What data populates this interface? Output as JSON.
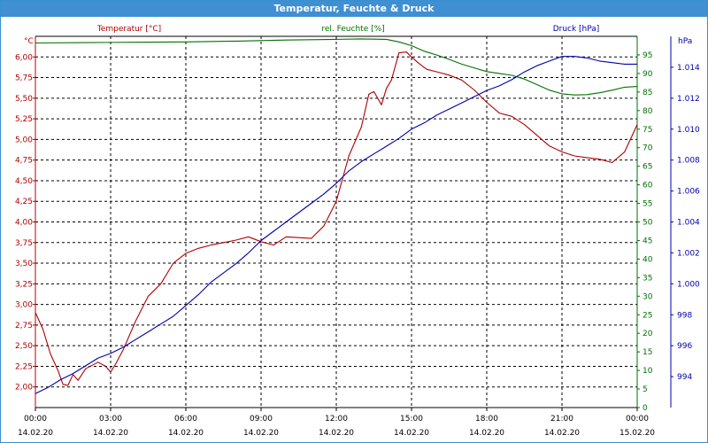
{
  "window": {
    "title": "Temperatur, Feuchte & Druck"
  },
  "colors": {
    "temperature": "#b00000",
    "humidity": "#007000",
    "pressure": "#0000b0",
    "grid": "#000000"
  },
  "chart_data": {
    "type": "line",
    "title": "Temperatur, Feuchte & Druck",
    "grid": true,
    "x_ticks": [
      {
        "time": "00:00",
        "date": "14.02.20"
      },
      {
        "time": "03:00",
        "date": "14.02.20"
      },
      {
        "time": "06:00",
        "date": "14.02.20"
      },
      {
        "time": "09:00",
        "date": "14.02.20"
      },
      {
        "time": "12:00",
        "date": "14.02.20"
      },
      {
        "time": "15:00",
        "date": "14.02.20"
      },
      {
        "time": "18:00",
        "date": "14.02.20"
      },
      {
        "time": "21:00",
        "date": "14.02.20"
      },
      {
        "time": "00:00",
        "date": "15.02.20"
      }
    ],
    "x_range_hours": [
      0,
      24
    ],
    "axes": {
      "temperature": {
        "label": "Temperatur [°C]",
        "unit": "°C",
        "range": [
          1.75,
          6.25
        ],
        "ticks": [
          "2,00",
          "2,25",
          "2,50",
          "2,75",
          "3,00",
          "3,25",
          "3,50",
          "3,75",
          "4,00",
          "4,25",
          "4,50",
          "4,75",
          "5,00",
          "5,25",
          "5,50",
          "5,75",
          "6,00"
        ]
      },
      "humidity": {
        "label": "rel. Feuchte [%]",
        "unit": "%",
        "range": [
          0,
          100
        ],
        "ticks": [
          "0",
          "5",
          "10",
          "15",
          "20",
          "25",
          "30",
          "35",
          "40",
          "45",
          "50",
          "55",
          "60",
          "65",
          "70",
          "75",
          "80",
          "85",
          "90",
          "95"
        ]
      },
      "pressure": {
        "label": "Druck [hPa]",
        "unit": "hPa",
        "range": [
          992,
          1016
        ],
        "ticks": [
          "994",
          "996",
          "998",
          "1.000",
          "1.002",
          "1.004",
          "1.006",
          "1.008",
          "1.010",
          "1.012",
          "1.014"
        ]
      }
    },
    "series": [
      {
        "name": "Temperatur [°C]",
        "axis": "temperature",
        "x": [
          0,
          0.3,
          0.6,
          0.9,
          1.1,
          1.3,
          1.5,
          1.7,
          2.0,
          2.5,
          2.8,
          3.0,
          3.2,
          3.5,
          4.0,
          4.5,
          5.0,
          5.5,
          6.0,
          6.5,
          7.0,
          7.5,
          8.0,
          8.5,
          9.0,
          9.5,
          10.0,
          10.5,
          11.0,
          11.5,
          12.0,
          12.5,
          13.0,
          13.3,
          13.5,
          13.8,
          14.0,
          14.2,
          14.5,
          14.8,
          15.0,
          15.3,
          15.6,
          16.0,
          16.5,
          17.0,
          17.5,
          18.0,
          18.5,
          19.0,
          19.5,
          20.0,
          20.5,
          21.0,
          21.5,
          22.0,
          22.5,
          23.0,
          23.5,
          24.0
        ],
        "y": [
          2.9,
          2.7,
          2.4,
          2.2,
          2.03,
          2.02,
          2.15,
          2.08,
          2.22,
          2.3,
          2.25,
          2.18,
          2.28,
          2.45,
          2.8,
          3.1,
          3.25,
          3.5,
          3.62,
          3.68,
          3.72,
          3.75,
          3.78,
          3.82,
          3.76,
          3.72,
          3.82,
          3.81,
          3.8,
          3.95,
          4.25,
          4.8,
          5.15,
          5.55,
          5.58,
          5.42,
          5.62,
          5.72,
          6.05,
          6.06,
          6.0,
          5.92,
          5.85,
          5.82,
          5.78,
          5.72,
          5.6,
          5.45,
          5.32,
          5.28,
          5.18,
          5.05,
          4.92,
          4.85,
          4.8,
          4.78,
          4.76,
          4.72,
          4.85,
          5.18
        ]
      },
      {
        "name": "rel. Feuchte [%]",
        "axis": "humidity",
        "x": [
          0,
          2,
          4,
          6,
          8,
          10,
          12,
          13,
          14,
          14.5,
          15,
          15.5,
          16,
          16.5,
          17,
          17.5,
          18,
          18.5,
          19,
          19.5,
          20,
          20.5,
          21,
          21.5,
          22,
          22.5,
          23,
          23.5,
          24
        ],
        "y": [
          98.2,
          98.3,
          98.4,
          98.5,
          98.7,
          99,
          99.2,
          99.3,
          99.2,
          98.5,
          97.5,
          96,
          95,
          93.8,
          92.5,
          91.5,
          90.5,
          90,
          89.5,
          88.5,
          87,
          85.5,
          84.5,
          84.2,
          84.3,
          84.8,
          85.5,
          86.3,
          86.5
        ]
      },
      {
        "name": "Druck [hPa]",
        "axis": "pressure",
        "x": [
          0,
          0.5,
          1,
          1.5,
          2,
          2.5,
          3,
          3.5,
          4,
          4.5,
          5,
          5.5,
          6,
          6.5,
          7,
          7.5,
          8,
          8.5,
          9,
          9.5,
          10,
          10.5,
          11,
          11.5,
          12,
          12.5,
          13,
          13.5,
          14,
          14.5,
          15,
          15.5,
          16,
          16.5,
          17,
          17.5,
          18,
          18.5,
          19,
          19.5,
          20,
          20.5,
          21,
          21.5,
          22,
          22.5,
          23,
          23.5,
          24
        ],
        "y": [
          992.9,
          993.3,
          993.8,
          994.2,
          994.7,
          995.2,
          995.5,
          995.9,
          996.4,
          996.9,
          997.4,
          997.9,
          998.6,
          999.3,
          1000.1,
          1000.7,
          1001.3,
          1002.0,
          1002.8,
          1003.4,
          1004.0,
          1004.6,
          1005.2,
          1005.8,
          1006.5,
          1007.3,
          1007.9,
          1008.4,
          1008.9,
          1009.4,
          1010.0,
          1010.4,
          1010.9,
          1011.3,
          1011.7,
          1012.1,
          1012.5,
          1012.8,
          1013.2,
          1013.7,
          1014.1,
          1014.4,
          1014.7,
          1014.7,
          1014.6,
          1014.4,
          1014.3,
          1014.2,
          1014.2
        ]
      }
    ]
  }
}
